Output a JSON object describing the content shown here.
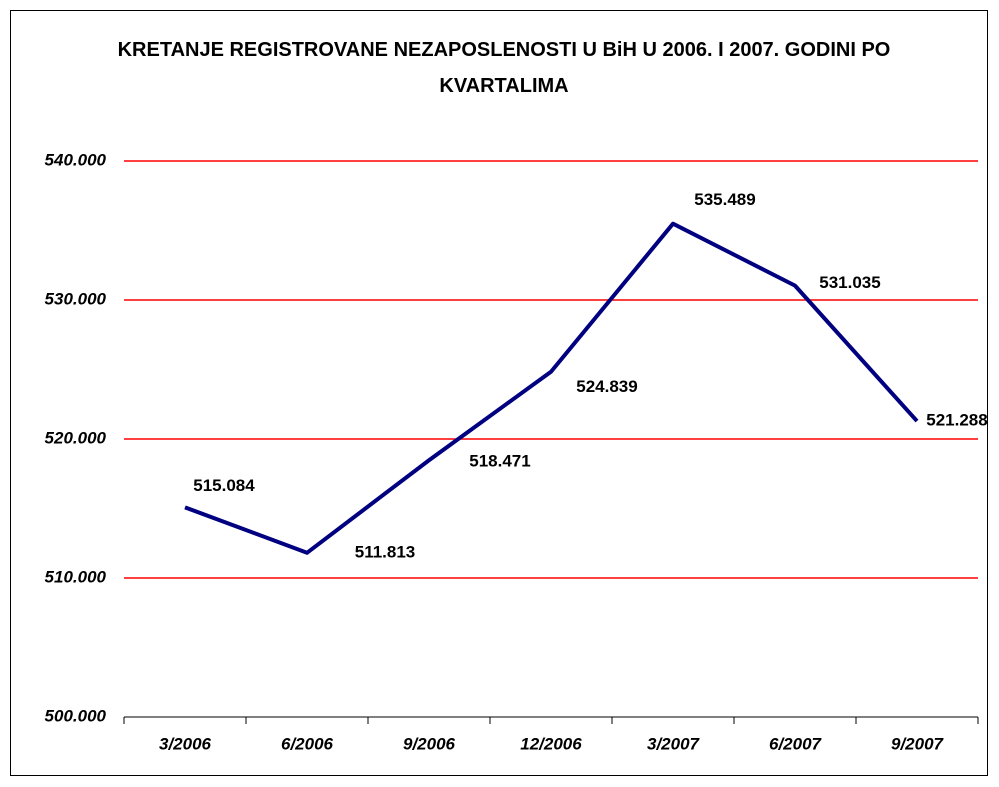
{
  "chart_data": {
    "type": "line",
    "title": "KRETANJE REGISTROVANE NEZAPOSLENOSTI U BiH U 2006. I 2007. GODINI PO KVARTALIMA",
    "categories": [
      "3/2006",
      "6/2006",
      "9/2006",
      "12/2006",
      "3/2007",
      "6/2007",
      "9/2007"
    ],
    "values": [
      515084,
      511813,
      518471,
      524839,
      535489,
      531035,
      521288
    ],
    "value_labels": [
      "515.084",
      "511.813",
      "518.471",
      "524.839",
      "535.489",
      "531.035",
      "521.288"
    ],
    "color": "#000080",
    "ylim": [
      500000,
      540000
    ],
    "yticks": [
      {
        "value": 500000,
        "label": "500.000"
      },
      {
        "value": 510000,
        "label": "510.000"
      },
      {
        "value": 520000,
        "label": "520.000"
      },
      {
        "value": 530000,
        "label": "530.000"
      },
      {
        "value": 540000,
        "label": "540.000"
      }
    ],
    "grid": true,
    "grid_color": "#ff0000"
  }
}
